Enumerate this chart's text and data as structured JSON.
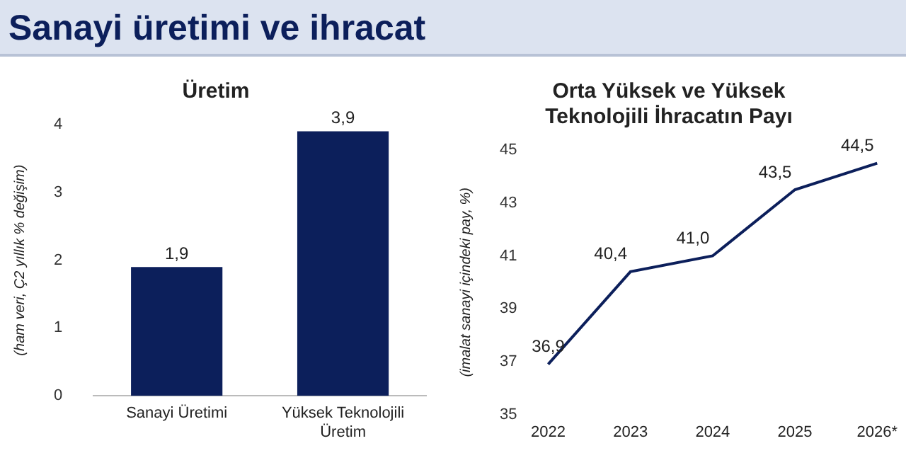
{
  "chart_data": [
    {
      "type": "bar",
      "title": "Sanayi üretimi ve ihracat",
      "subtitle": "Üretim",
      "ylabel": "(ham veri, Ç2 yıllık % değişim)",
      "categories": [
        "Sanayi Üretimi",
        "Yüksek Teknolojili Üretim"
      ],
      "values": [
        1.9,
        3.9
      ],
      "color": "#0c1f5b",
      "ylim": [
        0,
        4
      ],
      "yticks": [
        0,
        1,
        2,
        3,
        4
      ],
      "data_labels": true,
      "value_labels": [
        "1,9",
        "3,9"
      ]
    },
    {
      "type": "line",
      "title": "Orta Yüksek ve Yüksek Teknolojili İhracatın Payı",
      "ylabel": "(imalat sanayi içindeki pay, %)",
      "categories": [
        "2022",
        "2023",
        "2024",
        "2025",
        "2026*"
      ],
      "values": [
        36.9,
        40.4,
        41.0,
        43.5,
        44.5
      ],
      "color": "#0c1f5b",
      "ylim": [
        35,
        45
      ],
      "yticks": [
        35,
        37,
        39,
        41,
        43,
        45
      ],
      "marker": "none",
      "data_labels": true,
      "value_labels": [
        "36,9",
        "40,4",
        "41,0",
        "43,5",
        "44,5"
      ]
    }
  ]
}
